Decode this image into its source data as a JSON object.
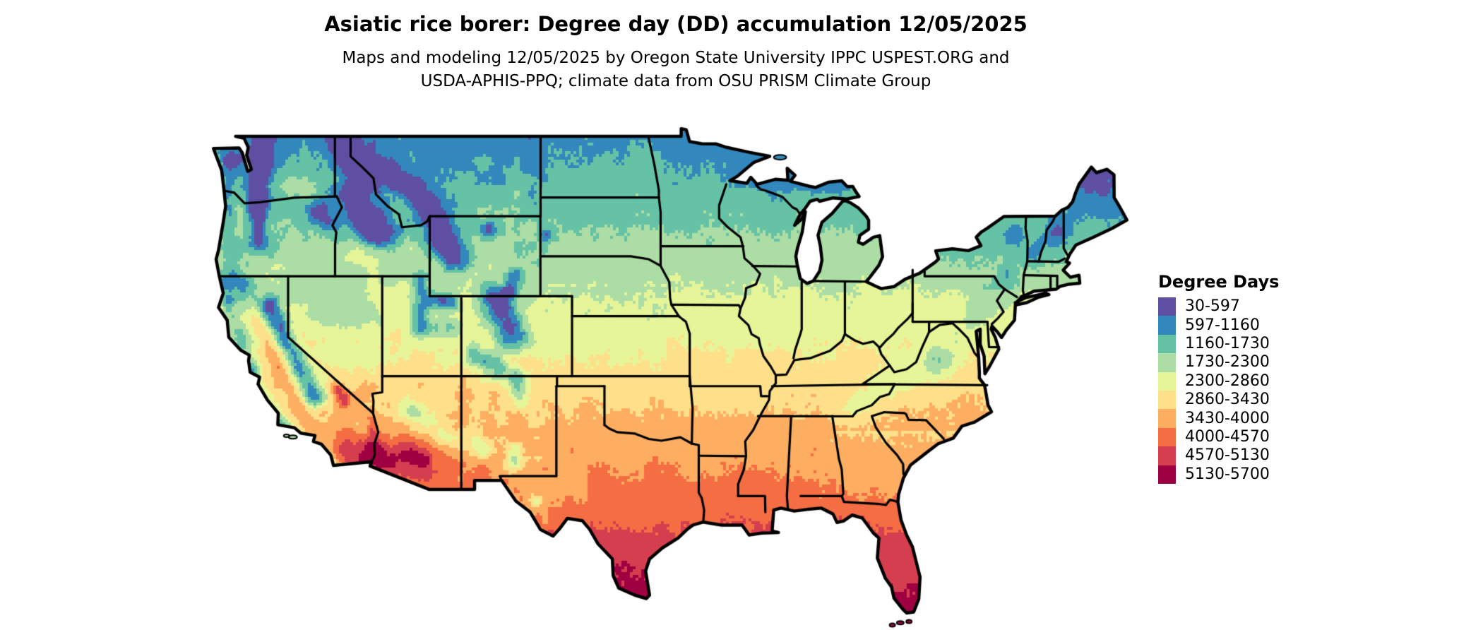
{
  "header": {
    "title": "Asiatic rice borer: Degree day (DD) accumulation 12/05/2025",
    "subtitle_line1": "Maps and modeling 12/05/2025 by Oregon State University IPPC USPEST.ORG and",
    "subtitle_line2": "USDA-APHIS-PPQ; climate data from OSU PRISM Climate Group"
  },
  "legend": {
    "title": "Degree Days",
    "items": [
      {
        "label": "30-597",
        "color": "#5e4fa2"
      },
      {
        "label": "597-1160",
        "color": "#3288bd"
      },
      {
        "label": "1160-1730",
        "color": "#66c2a5"
      },
      {
        "label": "1730-2300",
        "color": "#abdda4"
      },
      {
        "label": "2300-2860",
        "color": "#e6f598"
      },
      {
        "label": "2860-3430",
        "color": "#fee08b"
      },
      {
        "label": "3430-4000",
        "color": "#fdae61"
      },
      {
        "label": "4000-4570",
        "color": "#f46d43"
      },
      {
        "label": "4570-5130",
        "color": "#d53e4f"
      },
      {
        "label": "5130-5700",
        "color": "#9e0142"
      }
    ]
  },
  "chart_data": {
    "type": "heatmap",
    "title": "Asiatic rice borer: Degree day (DD) accumulation 12/05/2025",
    "legend_title": "Degree Days",
    "units": "degree days",
    "region": "Contiguous United States",
    "bin_edges": [
      30,
      597,
      1160,
      1730,
      2300,
      2860,
      3430,
      4000,
      4570,
      5130,
      5700
    ],
    "bin_colors": [
      "#5e4fa2",
      "#3288bd",
      "#66c2a5",
      "#abdda4",
      "#e6f598",
      "#fee08b",
      "#fdae61",
      "#f46d43",
      "#d53e4f",
      "#9e0142"
    ],
    "legend_position": "right"
  },
  "map": {
    "boundary_color": "#000000",
    "water_color": "#ffffff"
  }
}
